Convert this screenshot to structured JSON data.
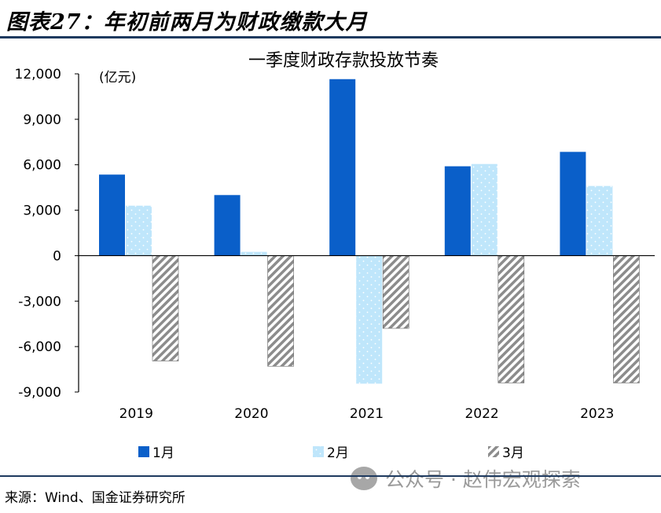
{
  "figure_title": "图表27：年初前两月为财政缴款大月",
  "source_text": "来源：Wind、国金证券研究所",
  "watermark_text": "公众号 · 赵伟宏观探索",
  "colors": {
    "jan": "#0a5fc9",
    "feb": "#bfe6fb",
    "mar_hatch": "#8c8c8c",
    "rule": "#1e3a5f",
    "axis": "#000000"
  },
  "chart_data": {
    "type": "bar",
    "title": "一季度财政存款投放节奏",
    "unit_label": "(亿元)",
    "categories": [
      "2019",
      "2020",
      "2021",
      "2022",
      "2023"
    ],
    "series": [
      {
        "name": "1月",
        "values": [
          5350,
          4000,
          11650,
          5900,
          6850
        ]
      },
      {
        "name": "2月",
        "values": [
          3300,
          250,
          -8450,
          6050,
          4600
        ]
      },
      {
        "name": "3月",
        "values": [
          -6950,
          -7300,
          -4800,
          -8400,
          -8400
        ]
      }
    ],
    "ylim": [
      -9000,
      12000
    ],
    "yticks": [
      -9000,
      -6000,
      -3000,
      0,
      3000,
      6000,
      9000,
      12000
    ],
    "ytick_labels": [
      "-9,000",
      "-6,000",
      "-3,000",
      "0",
      "3,000",
      "6,000",
      "9,000",
      "12,000"
    ],
    "grid": false,
    "legend_position": "bottom"
  }
}
